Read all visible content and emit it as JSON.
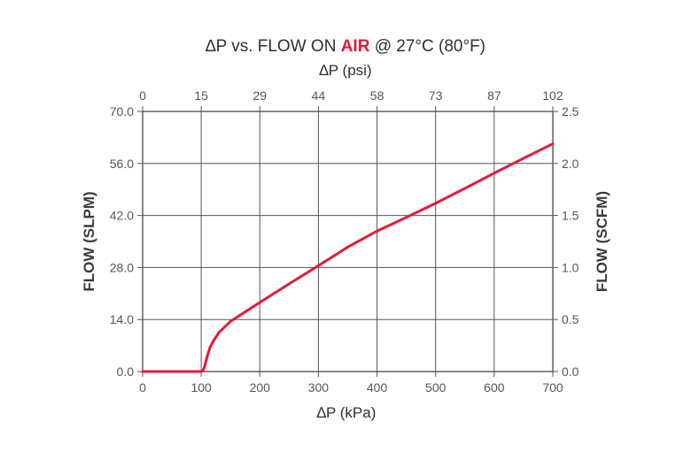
{
  "chart_data": {
    "type": "line",
    "title_prefix": "∆P vs. FLOW ON ",
    "title_highlight": "AIR",
    "title_suffix": " @ 27°C (80°F)",
    "title_highlight_color": "#e31b36",
    "top_axis_label": "∆P (psi)",
    "xlabel": "∆P (kPa)",
    "ylabel_left": "FLOW (SLPM)",
    "ylabel_right": "FLOW (SCFM)",
    "xlim": [
      0,
      700
    ],
    "ylim_left": [
      0,
      70
    ],
    "ylim_right": [
      0,
      2.5
    ],
    "x_ticks": [
      "0",
      "100",
      "200",
      "300",
      "400",
      "500",
      "600",
      "700"
    ],
    "top_ticks": [
      "0",
      "15",
      "29",
      "44",
      "58",
      "73",
      "87",
      "102"
    ],
    "left_ticks": [
      "0.0",
      "14.0",
      "28.0",
      "42.0",
      "56.0",
      "70.0"
    ],
    "right_ticks": [
      "0.0",
      "0.5",
      "1.0",
      "1.5",
      "2.0",
      "2.5"
    ],
    "grid": true,
    "series": [
      {
        "color": "#e31b36",
        "x": [
          0,
          100,
          103,
          106,
          110,
          115,
          120,
          130,
          150,
          200,
          250,
          300,
          350,
          400,
          450,
          500,
          550,
          600,
          650,
          700
        ],
        "y": [
          0,
          0,
          0.2,
          1.5,
          4.0,
          6.5,
          8.0,
          10.5,
          13.5,
          18.6,
          23.6,
          28.5,
          33.5,
          37.8,
          41.5,
          45.3,
          49.3,
          53.4,
          57.4,
          61.3
        ]
      }
    ]
  }
}
